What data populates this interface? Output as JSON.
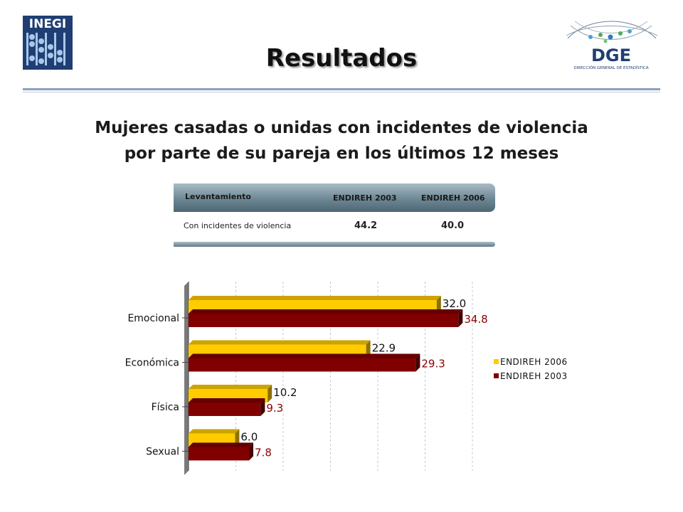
{
  "header": {
    "title": "Resultados",
    "subtitle_line1": "Mujeres casadas o unidas con incidentes de violencia",
    "subtitle_line2": "por parte de su pareja en los últimos 12 meses",
    "logo_left_text": "INEGI",
    "logo_right_text": "DGE",
    "logo_right_caption": "DIRECCIÓN GENERAL DE ESTADÍSTICA"
  },
  "summary_table": {
    "header_label": "Levantamiento",
    "col1": "ENDIREH 2003",
    "col2": "ENDIREH 2006",
    "row_label": "Con incidentes de violencia",
    "val1": "44.2",
    "val2": "40.0"
  },
  "colors": {
    "endireh_2006": "#ffcc00",
    "endireh_2003": "#800000",
    "label_2003": "#8b0000"
  },
  "chart_data": {
    "type": "bar",
    "orientation": "horizontal",
    "categories": [
      "Emocional",
      "Económica",
      "Física",
      "Sexual"
    ],
    "series": [
      {
        "name": "ENDIREH 2006",
        "values": [
          32.0,
          22.9,
          10.2,
          6.0
        ]
      },
      {
        "name": "ENDIREH 2003",
        "values": [
          34.8,
          29.3,
          9.3,
          7.8
        ]
      }
    ],
    "value_labels_2006": [
      "32.0",
      "22.9",
      "10.2",
      "6.0"
    ],
    "value_labels_2003": [
      "34.8",
      "29.3",
      "9.3",
      "7.8"
    ],
    "xlim": [
      0,
      36
    ],
    "grid": true,
    "legend_position": "right"
  }
}
